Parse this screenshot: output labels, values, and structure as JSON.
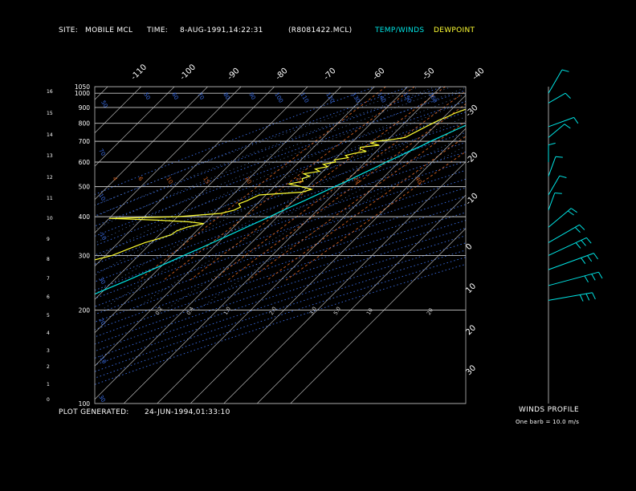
{
  "header": {
    "site_label": "SITE:",
    "site": "MOBILE MCL",
    "time_label": "TIME:",
    "time": "8-AUG-1991,14:22:31",
    "file": "(R8081422.MCL)",
    "legend_temp": "TEMP/WINDS",
    "legend_dew": "DEWPOINT"
  },
  "footer": {
    "generated_label": "PLOT GENERATED:",
    "generated": "24-JUN-1994,01:33:10"
  },
  "winds_panel": {
    "title": "WINDS PROFILE",
    "note": "One barb = 10.0 m/s"
  },
  "colors": {
    "temp": "#00e5e5",
    "dew": "#ffff33",
    "isobar": "#c8c8c8",
    "isotherm": "#c8c8c8",
    "adiabat": "#3a6ee8",
    "mixing": "#d06020",
    "moist": "#5f8fdf"
  },
  "chart_data": {
    "type": "line",
    "pressure_labels": [
      100,
      200,
      300,
      400,
      500,
      600,
      700,
      800,
      900,
      1000,
      1050
    ],
    "height_km_labels": [
      0,
      1,
      2,
      3,
      4,
      5,
      6,
      7,
      8,
      9,
      10,
      11,
      12,
      13,
      14,
      15,
      16
    ],
    "isotherm_top_labels": [
      -110,
      -100,
      -90,
      -80,
      -70,
      -60,
      -50,
      -40
    ],
    "isotherm_right_labels": [
      -30,
      -20,
      -10,
      0,
      10,
      20,
      30
    ],
    "adiabat_labels": [
      "50",
      "50",
      "60",
      "70",
      "80",
      "90",
      "100",
      "110",
      "120",
      "130",
      "140",
      "150",
      "160"
    ],
    "adiabat_left_labels": [
      "10",
      "70",
      "-10",
      "30",
      "20",
      "-10",
      "30",
      "-35"
    ],
    "mixing_ratio_labels": [
      "4",
      "6",
      "10",
      "15",
      "20",
      "24",
      "29",
      "40"
    ],
    "moist_labels": [
      "0.2",
      "0.4",
      "1.0",
      "2.0",
      "3.0",
      "5.0",
      "10",
      "20"
    ],
    "temperature": {
      "name": "TEMP/WINDS",
      "p": [
        1000,
        975,
        950,
        925,
        900,
        875,
        850,
        825,
        800,
        775,
        750,
        725,
        700,
        675,
        650,
        625,
        600,
        575,
        550,
        525,
        500,
        475,
        450,
        425,
        400,
        375,
        350,
        325,
        300,
        275,
        250,
        230,
        215
      ],
      "t": [
        31,
        29.2,
        27.7,
        26.4,
        25.1,
        23.7,
        22.3,
        21,
        19.8,
        18.2,
        16.6,
        15,
        13.3,
        11.8,
        9.9,
        8.2,
        6.2,
        4.5,
        2.5,
        0.5,
        -1.8,
        -4.3,
        -6.8,
        -9.6,
        -12.3,
        -15.5,
        -18.8,
        -22.4,
        -26.5,
        -30.8,
        -35.8,
        -40.5,
        -44
      ]
    },
    "dewpoint": {
      "name": "DEWPOINT",
      "p": [
        1000,
        980,
        960,
        950,
        930,
        910,
        900,
        880,
        860,
        840,
        820,
        800,
        780,
        760,
        740,
        720,
        710,
        700,
        690,
        680,
        670,
        660,
        650,
        640,
        630,
        620,
        610,
        600,
        590,
        580,
        570,
        560,
        550,
        540,
        530,
        520,
        510,
        500,
        490,
        480,
        470,
        460,
        450,
        440,
        430,
        420,
        410,
        400,
        395,
        390,
        385,
        380,
        370,
        360,
        350,
        340,
        330,
        320,
        310,
        300,
        290,
        280,
        270,
        260,
        250,
        240,
        230,
        220
      ],
      "td": [
        26,
        25,
        22,
        19,
        19,
        17,
        15.5,
        13.5,
        12,
        11,
        9.5,
        8.5,
        7.5,
        6.5,
        5.5,
        4.5,
        1.5,
        -3,
        -4,
        -1,
        -6,
        -5.5,
        -3,
        -6,
        -8,
        -6.5,
        -10,
        -9,
        -12,
        -10,
        -13,
        -11,
        -15,
        -12.5,
        -14,
        -13,
        -16.5,
        -12,
        -8,
        -10,
        -22,
        -23,
        -24,
        -25.5,
        -24,
        -25,
        -28,
        -40,
        -60,
        -45,
        -35,
        -30,
        -34,
        -36,
        -36.5,
        -39,
        -42,
        -44,
        -46,
        -48,
        -52,
        -55,
        -60,
        -63,
        -66,
        -70,
        -74,
        -80
      ]
    },
    "winds_profile_m_s": [
      {
        "p": 1000,
        "speed": 14,
        "dir": 210
      },
      {
        "p": 930,
        "speed": 8,
        "dir": 240
      },
      {
        "p": 780,
        "speed": 14,
        "dir": 250
      },
      {
        "p": 720,
        "speed": 9,
        "dir": 230
      },
      {
        "p": 600,
        "speed": 6,
        "dir": 180
      },
      {
        "p": 540,
        "speed": 9,
        "dir": 200
      },
      {
        "p": 470,
        "speed": 10,
        "dir": 210
      },
      {
        "p": 420,
        "speed": 7,
        "dir": 200
      },
      {
        "p": 370,
        "speed": 16,
        "dir": 230
      },
      {
        "p": 330,
        "speed": 21,
        "dir": 240
      },
      {
        "p": 300,
        "speed": 26,
        "dir": 245
      },
      {
        "p": 270,
        "speed": 31,
        "dir": 250
      },
      {
        "p": 240,
        "speed": 34,
        "dir": 255
      },
      {
        "p": 215,
        "speed": 28,
        "dir": 260
      }
    ]
  }
}
